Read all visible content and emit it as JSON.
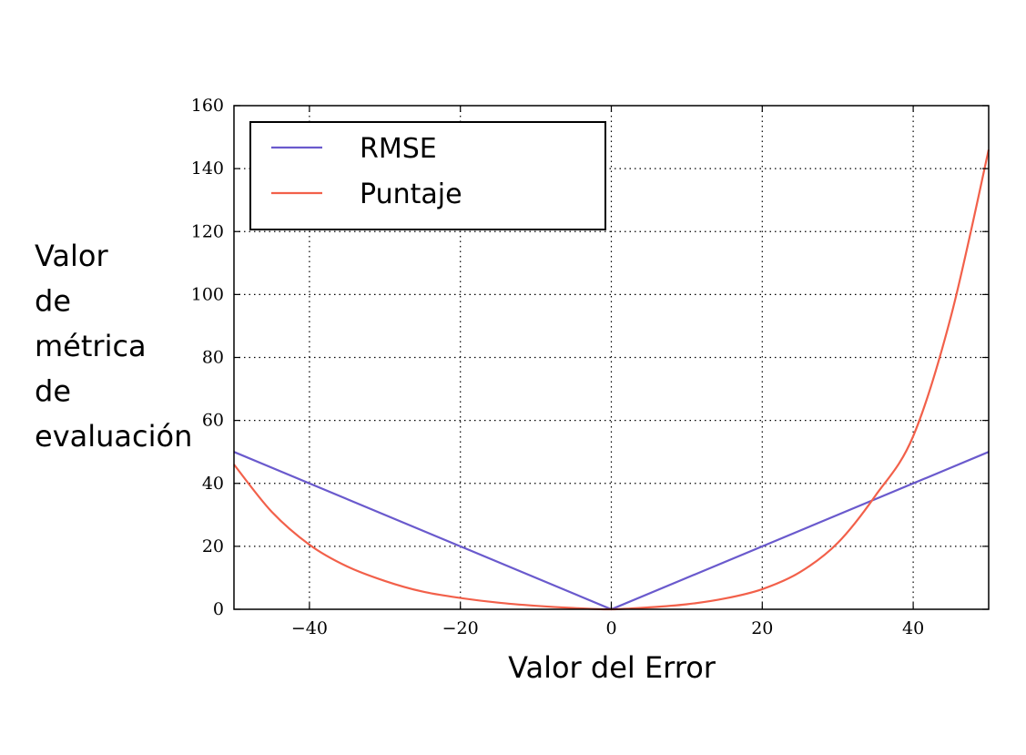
{
  "chart_data": {
    "type": "line",
    "xlabel": "Valor del Error",
    "ylabel_lines": [
      "Valor",
      "de",
      "métrica",
      "de",
      "evaluación"
    ],
    "xlim": [
      -50,
      50
    ],
    "ylim": [
      0,
      160
    ],
    "xticks": [
      -40,
      -20,
      0,
      20,
      40
    ],
    "xtick_labels": [
      "−40",
      "−20",
      "0",
      "20",
      "40"
    ],
    "yticks": [
      0,
      20,
      40,
      60,
      80,
      100,
      120,
      140,
      160
    ],
    "ytick_labels": [
      "0",
      "20",
      "40",
      "60",
      "80",
      "100",
      "120",
      "140",
      "160"
    ],
    "grid": true,
    "legend_position": "top-left",
    "series": [
      {
        "name": "RMSE",
        "color": "#6a5acd",
        "x": [
          -50,
          0,
          50
        ],
        "y": [
          50,
          0,
          50
        ]
      },
      {
        "name": "Puntaje",
        "color": "#f2604a",
        "x": [
          -50,
          -45,
          -40,
          -35,
          -30,
          -25,
          -20,
          -15,
          -10,
          -5,
          0,
          5,
          10,
          15,
          20,
          25,
          30,
          35,
          40,
          45,
          50
        ],
        "y": [
          46,
          31,
          20.5,
          13.6,
          9,
          5.6,
          3.6,
          2.1,
          1.1,
          0.4,
          0,
          0.6,
          1.6,
          3.4,
          6.4,
          11.8,
          21.1,
          36.1,
          55,
          93,
          146
        ]
      }
    ]
  }
}
